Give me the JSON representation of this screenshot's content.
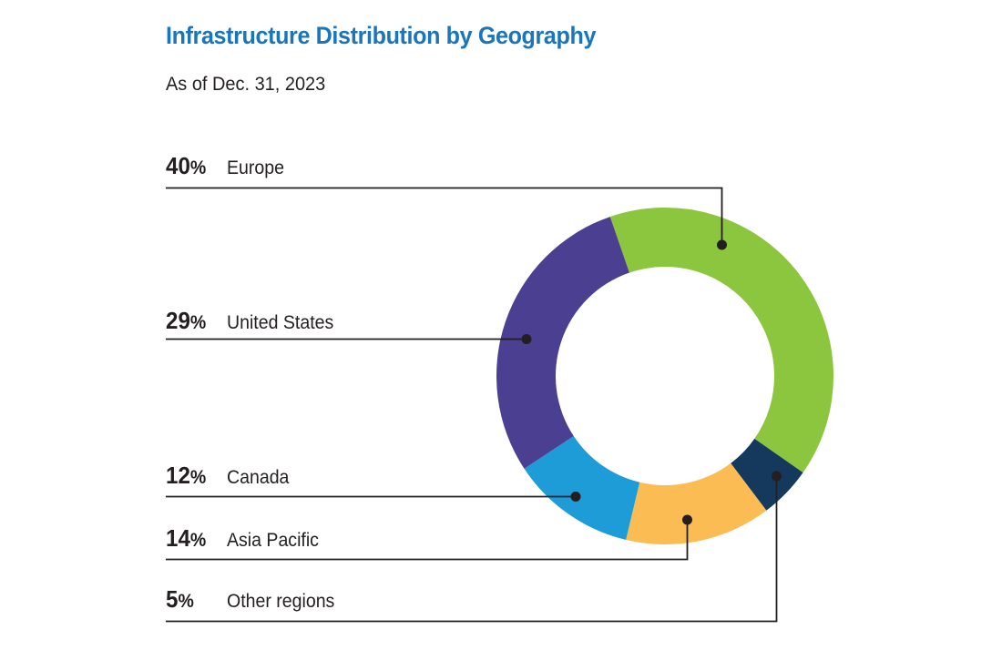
{
  "chart_data": {
    "type": "pie",
    "variant": "donut",
    "title": "Infrastructure Distribution by Geography",
    "subtitle": "As of Dec. 31, 2023",
    "unit": "%",
    "total": 100,
    "legend_position": "left",
    "start_angle_deg": -19,
    "direction": "clockwise",
    "segments_clockwise": [
      {
        "label": "Europe",
        "value": 40,
        "color": "#8CC63F"
      },
      {
        "label": "Other regions",
        "value": 5,
        "color": "#14395D"
      },
      {
        "label": "Asia Pacific",
        "value": 14,
        "color": "#FBBD53"
      },
      {
        "label": "Canada",
        "value": 12,
        "color": "#1E9CD7"
      },
      {
        "label": "United States",
        "value": 29,
        "color": "#4B3F92"
      }
    ],
    "labels": [
      {
        "value": "40",
        "suffix": "%",
        "name": "Europe"
      },
      {
        "value": "29",
        "suffix": "%",
        "name": "United States"
      },
      {
        "value": "12",
        "suffix": "%",
        "name": "Canada"
      },
      {
        "value": "14",
        "suffix": "%",
        "name": "Asia Pacific"
      },
      {
        "value": "5",
        "suffix": "%",
        "name": "Other regions"
      }
    ],
    "colors": {
      "title": "#1B75BB",
      "text": "#231F20",
      "leader_line": "#231F20"
    }
  }
}
